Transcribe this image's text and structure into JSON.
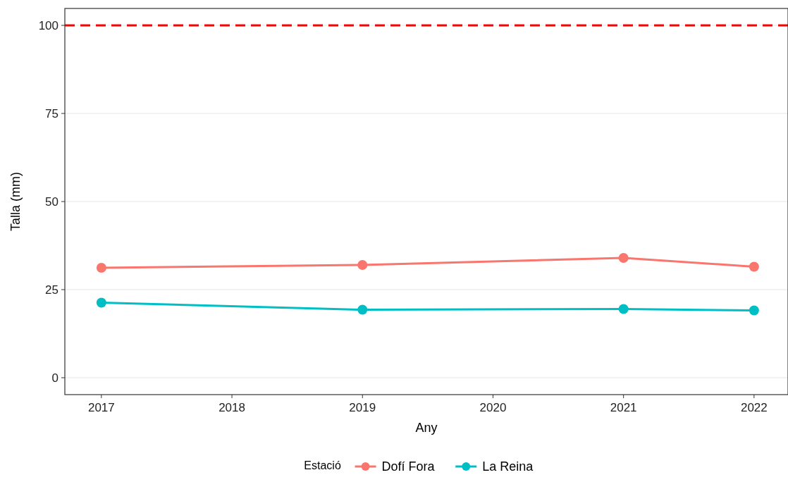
{
  "chart_data": {
    "type": "line",
    "xlabel": "Any",
    "ylabel": "Talla (mm)",
    "legend_title": "Estació",
    "x": [
      2017,
      2019,
      2021,
      2022
    ],
    "series": [
      {
        "name": "Dofí Fora",
        "color": "#f8766d",
        "values": [
          31.2,
          32,
          34,
          31.5
        ]
      },
      {
        "name": "La Reina",
        "color": "#00bfc4",
        "values": [
          21.3,
          19.3,
          19.5,
          19.1
        ]
      }
    ],
    "xlim": [
      2016.72,
      2022.26
    ],
    "xticks": [
      2017,
      2018,
      2019,
      2020,
      2021,
      2022
    ],
    "ylim": [
      -4.8,
      104.8
    ],
    "yticks": [
      0,
      25,
      50,
      75,
      100
    ],
    "ref_lines": [
      {
        "axis": "y",
        "value": 100,
        "color": "#ff0000",
        "line_style": "dashed"
      }
    ],
    "grid": "y",
    "legend": "bottom",
    "marker": "circle",
    "line_style": "solid"
  }
}
